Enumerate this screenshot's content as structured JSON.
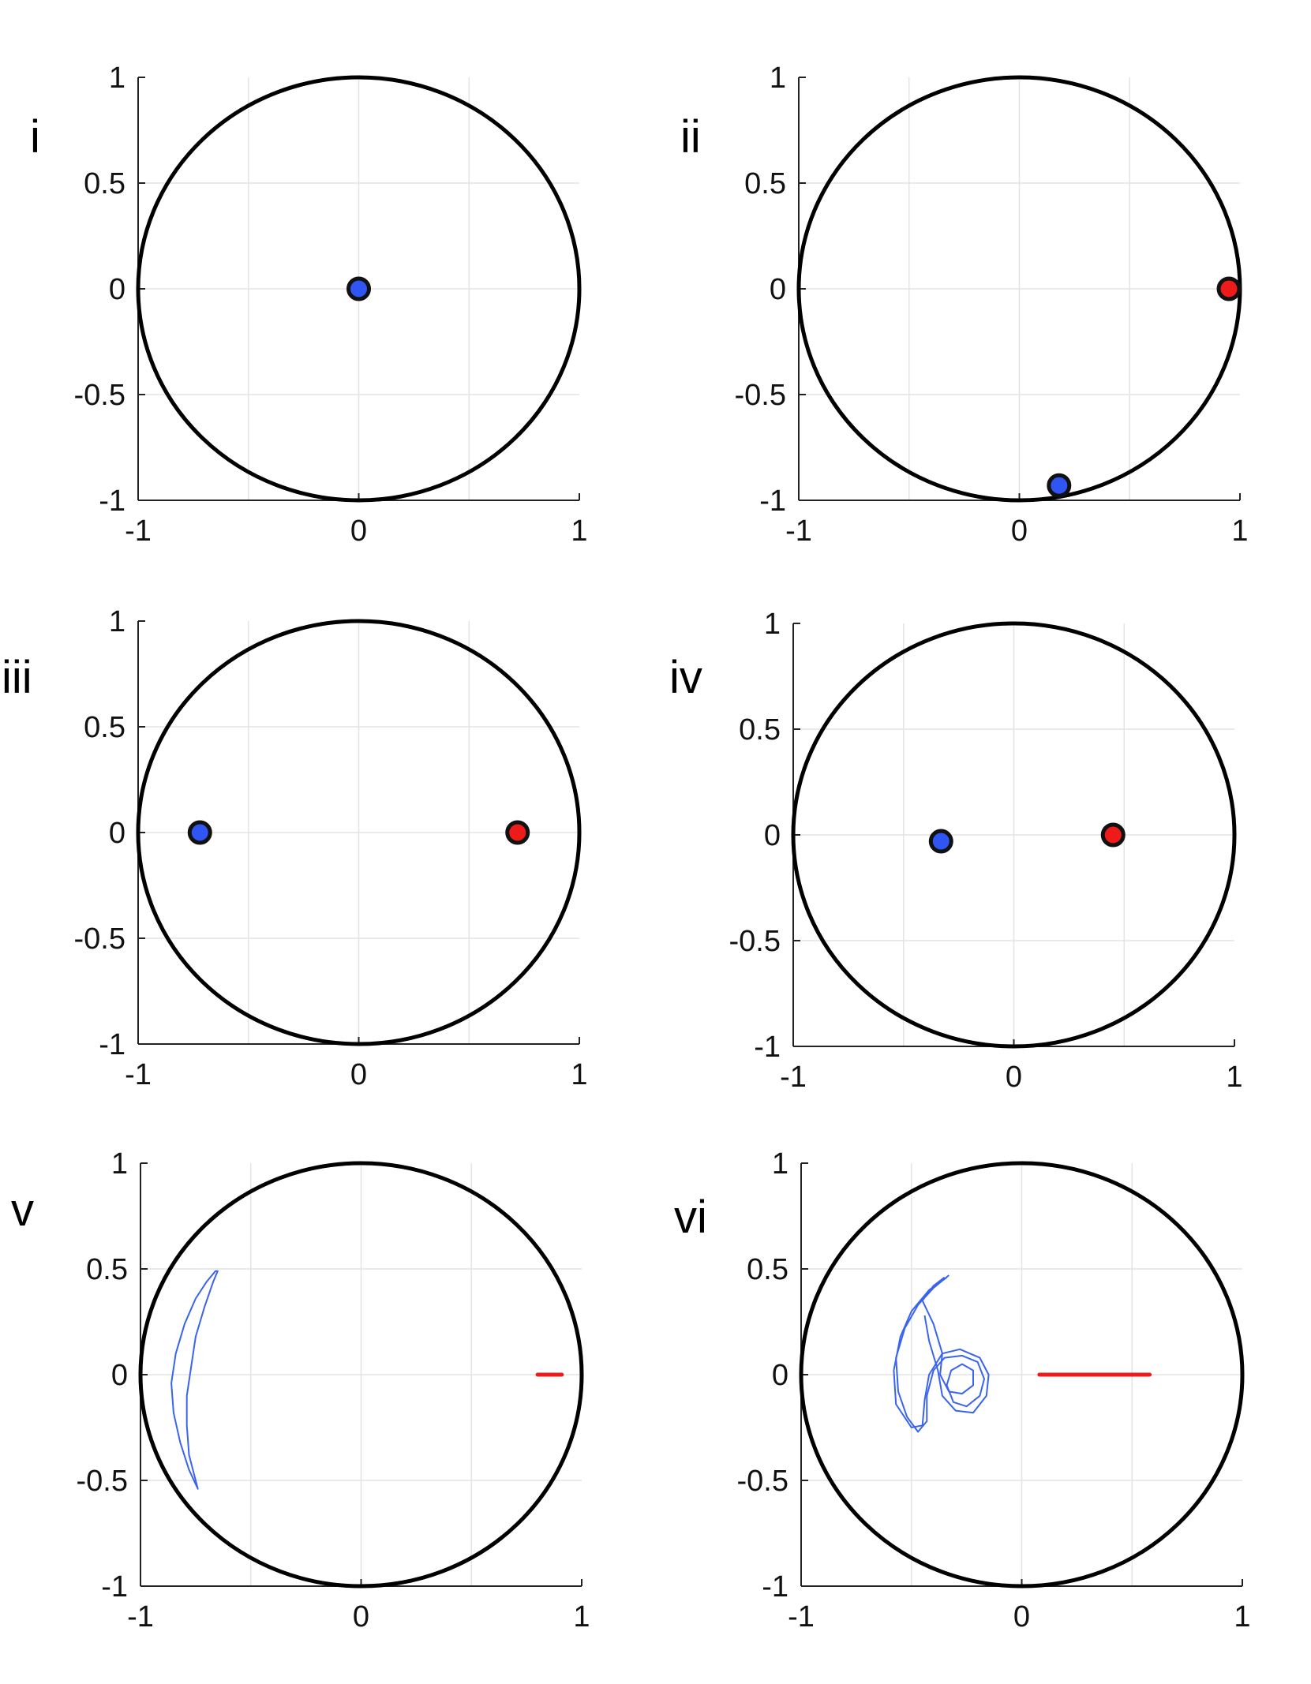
{
  "chart_data": [
    {
      "panel": "i",
      "type": "scatter",
      "xlim": [
        -1,
        1
      ],
      "ylim": [
        -1,
        1
      ],
      "xticks": [
        "-1",
        "0",
        "1"
      ],
      "yticks": [
        "1",
        "0.5",
        "0",
        "-0.5",
        "-1"
      ],
      "grid": true,
      "circle": {
        "radius": 1,
        "color": "#000000"
      },
      "points": [
        {
          "x": 0.0,
          "y": 0.0,
          "color": "#2f55f2"
        }
      ],
      "curves": [],
      "segments": []
    },
    {
      "panel": "ii",
      "type": "scatter",
      "xlim": [
        -1,
        1
      ],
      "ylim": [
        -1,
        1
      ],
      "xticks": [
        "-1",
        "0",
        "1"
      ],
      "yticks": [
        "1",
        "0.5",
        "0",
        "-0.5",
        "-1"
      ],
      "grid": true,
      "circle": {
        "radius": 1,
        "color": "#000000"
      },
      "points": [
        {
          "x": 0.95,
          "y": 0.0,
          "color": "#ee1b1b"
        },
        {
          "x": 0.18,
          "y": -0.93,
          "color": "#2f55f2"
        }
      ],
      "curves": [],
      "segments": []
    },
    {
      "panel": "iii",
      "type": "scatter",
      "xlim": [
        -1,
        1
      ],
      "ylim": [
        -1,
        1
      ],
      "xticks": [
        "-1",
        "0",
        "1"
      ],
      "yticks": [
        "1",
        "0.5",
        "0",
        "-0.5",
        "-1"
      ],
      "grid": true,
      "circle": {
        "radius": 1,
        "color": "#000000"
      },
      "points": [
        {
          "x": -0.72,
          "y": 0.0,
          "color": "#2f55f2"
        },
        {
          "x": 0.72,
          "y": 0.0,
          "color": "#ee1b1b"
        }
      ],
      "curves": [],
      "segments": []
    },
    {
      "panel": "iv",
      "type": "scatter",
      "xlim": [
        -1,
        1
      ],
      "ylim": [
        -1,
        1
      ],
      "xticks": [
        "-1",
        "0",
        "1"
      ],
      "yticks": [
        "1",
        "0.5",
        "0",
        "-0.5",
        "-1"
      ],
      "grid": true,
      "circle": {
        "radius": 1,
        "color": "#000000"
      },
      "points": [
        {
          "x": -0.33,
          "y": -0.03,
          "color": "#2f55f2"
        },
        {
          "x": 0.45,
          "y": 0.0,
          "color": "#ee1b1b"
        }
      ],
      "curves": [],
      "segments": []
    },
    {
      "panel": "v",
      "type": "line",
      "xlim": [
        -1,
        1
      ],
      "ylim": [
        -1,
        1
      ],
      "xticks": [
        "-1",
        "0",
        "1"
      ],
      "yticks": [
        "1",
        "0.5",
        "0",
        "-0.5",
        "-1"
      ],
      "grid": true,
      "circle": {
        "radius": 1,
        "color": "#000000"
      },
      "points": [],
      "curves": [
        {
          "color": "#3a63f0",
          "closed": true,
          "points": [
            [
              -0.66,
              0.49
            ],
            [
              -0.7,
              0.44
            ],
            [
              -0.75,
              0.36
            ],
            [
              -0.8,
              0.24
            ],
            [
              -0.84,
              0.1
            ],
            [
              -0.86,
              -0.04
            ],
            [
              -0.85,
              -0.18
            ],
            [
              -0.82,
              -0.32
            ],
            [
              -0.78,
              -0.45
            ],
            [
              -0.74,
              -0.54
            ],
            [
              -0.75,
              -0.5
            ],
            [
              -0.78,
              -0.38
            ],
            [
              -0.79,
              -0.24
            ],
            [
              -0.79,
              -0.1
            ],
            [
              -0.77,
              0.04
            ],
            [
              -0.75,
              0.18
            ],
            [
              -0.71,
              0.32
            ],
            [
              -0.67,
              0.44
            ],
            [
              -0.65,
              0.49
            ]
          ]
        }
      ],
      "segments": [
        {
          "x1": 0.8,
          "y1": 0.0,
          "x2": 0.91,
          "y2": 0.0,
          "color": "#ee1b1b"
        }
      ]
    },
    {
      "panel": "vi",
      "type": "line",
      "xlim": [
        -1,
        1
      ],
      "ylim": [
        -1,
        1
      ],
      "xticks": [
        "-1",
        "0",
        "1"
      ],
      "yticks": [
        "1",
        "0.5",
        "0",
        "-0.5",
        "-1"
      ],
      "grid": true,
      "circle": {
        "radius": 1,
        "color": "#000000"
      },
      "points": [],
      "curves": [
        {
          "color": "#3a63f0",
          "closed": false,
          "points": [
            [
              -0.33,
              0.47
            ],
            [
              -0.4,
              0.41
            ],
            [
              -0.47,
              0.33
            ],
            [
              -0.53,
              0.22
            ],
            [
              -0.57,
              0.08
            ],
            [
              -0.56,
              -0.08
            ],
            [
              -0.52,
              -0.2
            ],
            [
              -0.47,
              -0.27
            ],
            [
              -0.43,
              -0.22
            ],
            [
              -0.43,
              -0.1
            ],
            [
              -0.4,
              0.02
            ],
            [
              -0.35,
              0.08
            ],
            [
              -0.27,
              0.09
            ],
            [
              -0.2,
              0.06
            ],
            [
              -0.17,
              -0.02
            ],
            [
              -0.19,
              -0.1
            ],
            [
              -0.25,
              -0.15
            ],
            [
              -0.31,
              -0.13
            ],
            [
              -0.34,
              -0.05
            ],
            [
              -0.32,
              0.02
            ],
            [
              -0.27,
              0.05
            ],
            [
              -0.22,
              0.02
            ],
            [
              -0.22,
              -0.05
            ],
            [
              -0.27,
              -0.09
            ],
            [
              -0.33,
              -0.08
            ],
            [
              -0.37,
              0.0
            ],
            [
              -0.36,
              0.1
            ],
            [
              -0.4,
              0.24
            ],
            [
              -0.45,
              0.35
            ],
            [
              -0.4,
              0.42
            ],
            [
              -0.35,
              0.46
            ]
          ]
        },
        {
          "color": "#3a63f0",
          "closed": false,
          "points": [
            [
              -0.34,
              0.46
            ],
            [
              -0.42,
              0.4
            ],
            [
              -0.5,
              0.3
            ],
            [
              -0.55,
              0.18
            ],
            [
              -0.58,
              0.02
            ],
            [
              -0.57,
              -0.14
            ],
            [
              -0.5,
              -0.25
            ],
            [
              -0.45,
              -0.24
            ],
            [
              -0.44,
              -0.12
            ],
            [
              -0.42,
              0.0
            ],
            [
              -0.36,
              0.1
            ],
            [
              -0.28,
              0.12
            ],
            [
              -0.19,
              0.08
            ],
            [
              -0.15,
              0.0
            ],
            [
              -0.16,
              -0.1
            ],
            [
              -0.22,
              -0.18
            ],
            [
              -0.3,
              -0.17
            ],
            [
              -0.36,
              -0.1
            ],
            [
              -0.38,
              0.02
            ],
            [
              -0.42,
              0.16
            ],
            [
              -0.44,
              0.28
            ]
          ]
        }
      ],
      "segments": [
        {
          "x1": 0.08,
          "y1": 0.0,
          "x2": 0.58,
          "y2": 0.0,
          "color": "#ee1b1b"
        }
      ]
    }
  ]
}
